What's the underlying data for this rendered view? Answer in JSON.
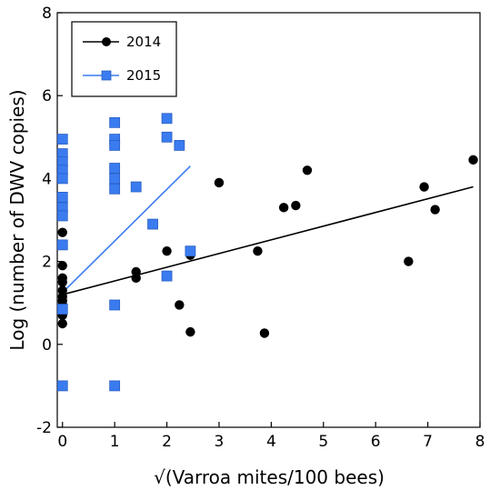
{
  "chart_data": {
    "type": "scatter",
    "title": "",
    "xlabel": "√(Varroa mites/100 bees)",
    "ylabel": "Log (number of DWV copies)",
    "xlim": [
      -0.1,
      8.0
    ],
    "ylim": [
      -2.0,
      8.0
    ],
    "x_ticks": [
      "0",
      "1",
      "2",
      "3",
      "4",
      "5",
      "6",
      "7",
      "8"
    ],
    "y_ticks": [
      "-2",
      "0",
      "2",
      "4",
      "6",
      "8"
    ],
    "grid": false,
    "legend": {
      "placement": "top-left"
    },
    "series": [
      {
        "name": "2014",
        "marker": "circle",
        "color": "#000000",
        "points": [
          {
            "x": 0.0,
            "y": 2.7
          },
          {
            "x": 0.0,
            "y": 1.9
          },
          {
            "x": 0.0,
            "y": 1.6
          },
          {
            "x": 0.0,
            "y": 1.5
          },
          {
            "x": 0.0,
            "y": 1.3
          },
          {
            "x": 0.0,
            "y": 1.15
          },
          {
            "x": 0.0,
            "y": 1.05
          },
          {
            "x": 0.0,
            "y": 0.95
          },
          {
            "x": 0.0,
            "y": 0.85
          },
          {
            "x": 0.0,
            "y": 0.7
          },
          {
            "x": 0.0,
            "y": 0.5
          },
          {
            "x": 1.41,
            "y": 1.75
          },
          {
            "x": 1.41,
            "y": 1.6
          },
          {
            "x": 2.0,
            "y": 2.25
          },
          {
            "x": 2.24,
            "y": 0.95
          },
          {
            "x": 2.45,
            "y": 2.15
          },
          {
            "x": 2.45,
            "y": 0.3
          },
          {
            "x": 3.0,
            "y": 3.9
          },
          {
            "x": 3.74,
            "y": 2.25
          },
          {
            "x": 3.87,
            "y": 0.27
          },
          {
            "x": 4.24,
            "y": 3.3
          },
          {
            "x": 4.47,
            "y": 3.35
          },
          {
            "x": 4.69,
            "y": 4.2
          },
          {
            "x": 6.63,
            "y": 2.0
          },
          {
            "x": 6.93,
            "y": 3.8
          },
          {
            "x": 7.14,
            "y": 3.25
          },
          {
            "x": 7.87,
            "y": 4.45
          }
        ],
        "fit": {
          "x0": 0.0,
          "y0": 1.2,
          "x1": 7.87,
          "y1": 3.8
        }
      },
      {
        "name": "2015",
        "marker": "square",
        "color": "#3a7cf0",
        "points": [
          {
            "x": 0.0,
            "y": 4.95
          },
          {
            "x": 0.0,
            "y": 4.6
          },
          {
            "x": 0.0,
            "y": 4.4
          },
          {
            "x": 0.0,
            "y": 4.2
          },
          {
            "x": 0.0,
            "y": 4.0
          },
          {
            "x": 0.0,
            "y": 3.55
          },
          {
            "x": 0.0,
            "y": 3.3
          },
          {
            "x": 0.0,
            "y": 3.1
          },
          {
            "x": 0.0,
            "y": 2.4
          },
          {
            "x": 0.0,
            "y": 0.85
          },
          {
            "x": 0.0,
            "y": -1.0
          },
          {
            "x": 1.0,
            "y": 5.35
          },
          {
            "x": 1.0,
            "y": 4.95
          },
          {
            "x": 1.0,
            "y": 4.8
          },
          {
            "x": 1.0,
            "y": 4.25
          },
          {
            "x": 1.0,
            "y": 4.0
          },
          {
            "x": 1.0,
            "y": 3.75
          },
          {
            "x": 1.0,
            "y": 0.95
          },
          {
            "x": 1.0,
            "y": -1.0
          },
          {
            "x": 1.41,
            "y": 3.8
          },
          {
            "x": 1.73,
            "y": 2.9
          },
          {
            "x": 2.0,
            "y": 5.45
          },
          {
            "x": 2.0,
            "y": 5.0
          },
          {
            "x": 2.0,
            "y": 1.65
          },
          {
            "x": 2.24,
            "y": 4.8
          },
          {
            "x": 2.45,
            "y": 2.25
          }
        ],
        "fit": {
          "x0": 0.0,
          "y0": 1.25,
          "x1": 2.45,
          "y1": 4.3
        }
      }
    ]
  }
}
